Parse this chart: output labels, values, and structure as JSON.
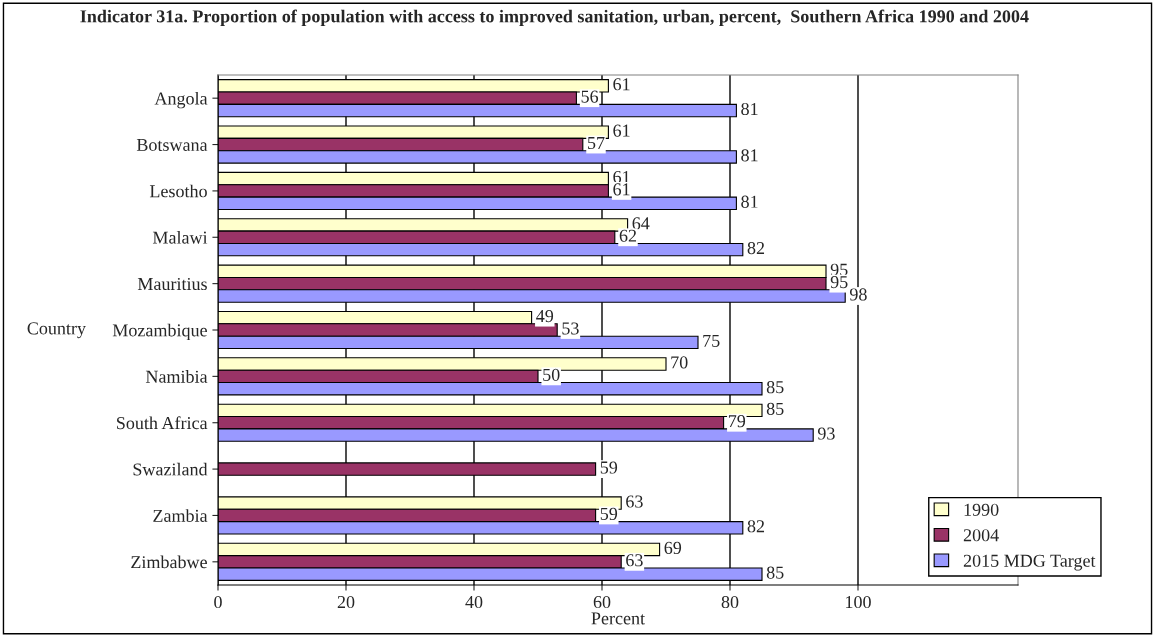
{
  "chart_data": {
    "type": "bar",
    "orientation": "horizontal",
    "title": "Indicator 31a. Proportion of population with access to improved sanitation, urban, percent,  Southern Africa 1990 and 2004",
    "xlabel": "Percent",
    "ylabel": "Country",
    "categories": [
      "Angola",
      "Botswana",
      "Lesotho",
      "Malawi",
      "Mauritius",
      "Mozambique",
      "Namibia",
      "South Africa",
      "Swaziland",
      "Zambia",
      "Zimbabwe"
    ],
    "series": [
      {
        "name": "1990",
        "color": "#ffffcc",
        "values": [
          61,
          61,
          61,
          64,
          95,
          49,
          70,
          85,
          null,
          63,
          69
        ]
      },
      {
        "name": "2004",
        "color": "#993366",
        "values": [
          56,
          57,
          61,
          62,
          95,
          53,
          50,
          79,
          59,
          59,
          63
        ]
      },
      {
        "name": "2015 MDG Target",
        "color": "#9999ff",
        "values": [
          81,
          81,
          81,
          82,
          98,
          75,
          85,
          93,
          null,
          82,
          85
        ]
      }
    ],
    "xlim": [
      0,
      125
    ],
    "xticks": [
      0,
      20,
      40,
      60,
      80,
      100
    ],
    "grid": "x",
    "legend": "bottom right",
    "data_labels": true
  }
}
